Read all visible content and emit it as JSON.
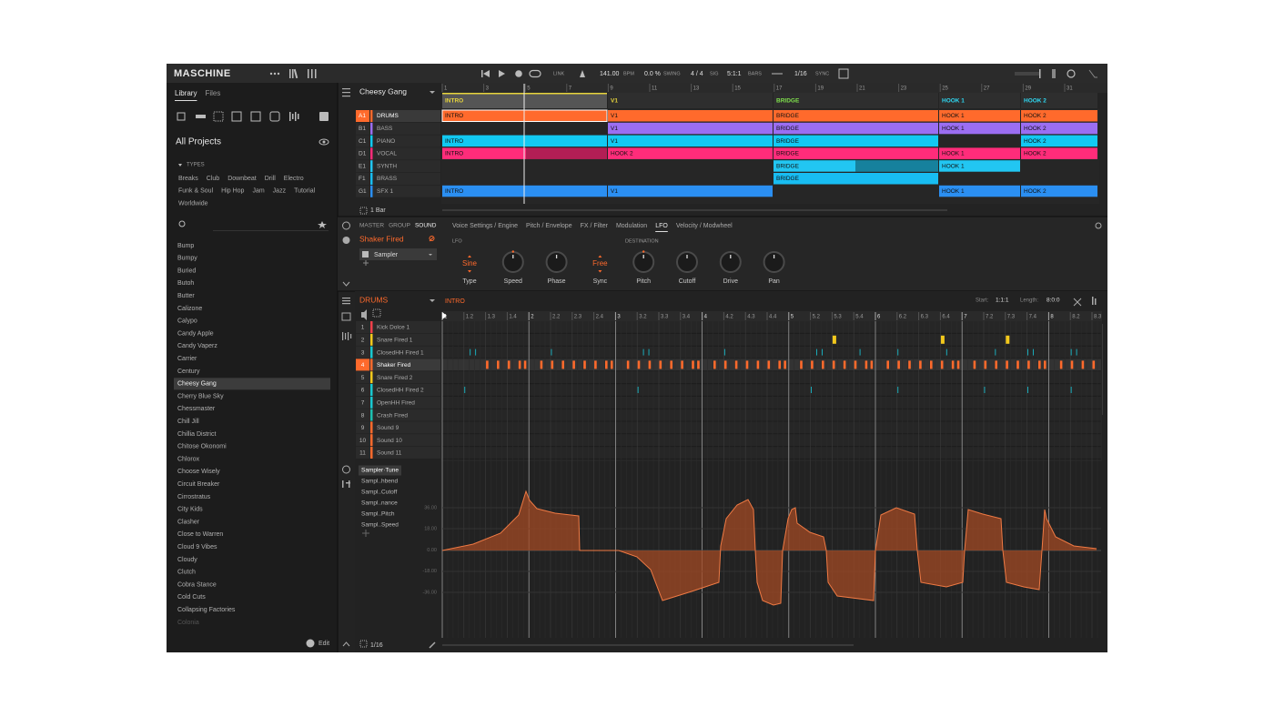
{
  "header": {
    "logo": "MASCHINE",
    "link": "LINK",
    "tempo": "141.00",
    "tempo_unit": "BPM",
    "swing": "0.0 %",
    "swing_label": "SWING",
    "signature": "4 / 4",
    "signature_label": "SIG",
    "position": "5:1:1",
    "position_label": "BARS",
    "quantize": "1/16",
    "sync_label": "SYNC"
  },
  "browser": {
    "tabs": [
      "Library",
      "Files"
    ],
    "title": "All Projects",
    "types_label": "TYPES",
    "types": [
      [
        "Breaks",
        "Club",
        "Downbeat",
        "Drill",
        "Electro"
      ],
      [
        "Funk & Soul",
        "Hip Hop",
        "Jam",
        "Jazz",
        "Tutorial"
      ],
      [
        "Worldwide"
      ]
    ],
    "projects": [
      "Bump",
      "Bumpy",
      "Buried",
      "Butoh",
      "Butter",
      "Calizone",
      "Calypo",
      "Candy Apple",
      "Candy Vaperz",
      "Carrier",
      "Century",
      "Cheesy Gang",
      "Cherry Blue Sky",
      "Chessmaster",
      "Chill Jill",
      "Chillia District",
      "Chitose Okonomi",
      "Chlorox",
      "Choose Wisely",
      "Circuit Breaker",
      "Cirrostratus",
      "City Kids",
      "Clasher",
      "Close to Warren",
      "Cloud 9 Vibes",
      "Cloudy",
      "Clutch",
      "Cobra Stance",
      "Cold Cuts",
      "Collapsing Factories",
      "Colonia"
    ],
    "edit": "Edit"
  },
  "arranger": {
    "project": "Cheesy Gang",
    "ruler": [
      "1",
      "3",
      "5",
      "7",
      "9",
      "11",
      "13",
      "15",
      "17",
      "19",
      "21",
      "23",
      "25",
      "27",
      "29",
      "31"
    ],
    "sections": [
      {
        "name": "INTRO",
        "color": "#e6d43c"
      },
      {
        "name": "V1",
        "color": "#e6d43c"
      },
      {
        "name": "BRIDGE",
        "color": "#7fe04c"
      },
      {
        "name": "HOOK 1",
        "color": "#2fd8f2"
      },
      {
        "name": "HOOK 2",
        "color": "#2fd8f2"
      }
    ],
    "groups": [
      {
        "id": "A1",
        "name": "DRUMS",
        "color": "#ff6a2c",
        "clips": [
          "INTRO",
          "V1",
          "BRIDGE",
          "HOOK 1",
          "HOOK 2"
        ]
      },
      {
        "id": "B1",
        "name": "BASS",
        "color": "#9b6ef2",
        "clips": [
          null,
          "V1",
          "BRIDGE",
          "HOOK 1",
          "HOOK 2"
        ]
      },
      {
        "id": "C1",
        "name": "PIANO",
        "color": "#12c9f2",
        "clips": [
          "INTRO",
          "V1",
          "BRIDGE",
          null,
          "HOOK 2"
        ]
      },
      {
        "id": "D1",
        "name": "VOCAL",
        "color": "#ff2c7a",
        "clips": [
          "INTRO",
          "HOOK 2",
          "BRIDGE",
          "HOOK 1",
          "HOOK 2"
        ]
      },
      {
        "id": "E1",
        "name": "SYNTH",
        "color": "#22c6f2",
        "clips": [
          null,
          null,
          "BRIDGE",
          "HOOK 1",
          null
        ]
      },
      {
        "id": "F1",
        "name": "BRASS",
        "color": "#18bdf2",
        "clips": [
          null,
          null,
          "BRIDGE",
          null,
          null
        ]
      },
      {
        "id": "G1",
        "name": "SFX 1",
        "color": "#2b8ff2",
        "clips": [
          "INTRO",
          "V1",
          null,
          "HOOK 1",
          "HOOK 2"
        ]
      }
    ],
    "zoom": "1 Bar"
  },
  "plugin": {
    "tabs": [
      "MASTER",
      "GROUP",
      "SOUND"
    ],
    "sound": "Shaker Fired",
    "module": "Sampler",
    "pages": [
      "Voice Settings / Engine",
      "Pitch / Envelope",
      "FX / Filter",
      "Modulation",
      "LFO",
      "Velocity / Modwheel"
    ],
    "section": "LFO",
    "destination": "DESTINATION",
    "knobs": [
      {
        "label": "Type",
        "value": "Sine"
      },
      {
        "label": "Speed"
      },
      {
        "label": "Phase"
      },
      {
        "label": "Sync",
        "value": "Free"
      },
      {
        "label": "Pitch"
      },
      {
        "label": "Cutoff"
      },
      {
        "label": "Drive"
      },
      {
        "label": "Pan"
      }
    ]
  },
  "pattern": {
    "group": "DRUMS",
    "pattern": "INTRO",
    "start_label": "Start:",
    "start": "1:1:1",
    "length_label": "Length:",
    "length": "8:0:0",
    "sounds": [
      {
        "name": "Kick Dolce 1",
        "color": "#f0404a"
      },
      {
        "name": "Snare Fired 1",
        "color": "#f2c81c"
      },
      {
        "name": "ClosedHH Fired 1",
        "color": "#18c8d0"
      },
      {
        "name": "Shaker Fired",
        "color": "#ff6a2c"
      },
      {
        "name": "Snare Fired 2",
        "color": "#f2c81c"
      },
      {
        "name": "ClosedHH Fired 2",
        "color": "#18c8d0"
      },
      {
        "name": "OpenHH Fired",
        "color": "#18c8d0"
      },
      {
        "name": "Crash Fired",
        "color": "#1cc0b0"
      },
      {
        "name": "Sound 9",
        "color": "#ff6a2c"
      },
      {
        "name": "Sound 10",
        "color": "#ff6a2c"
      },
      {
        "name": "Sound 11",
        "color": "#ff6a2c"
      }
    ],
    "ruler": [
      "1",
      "1.2",
      "1.3",
      "1.4",
      "2",
      "2.2",
      "2.3",
      "2.4",
      "3",
      "3.2",
      "3.3",
      "3.4",
      "4",
      "4.2",
      "4.3",
      "4.4",
      "5",
      "5.2",
      "5.3",
      "5.4",
      "6",
      "6.2",
      "6.3",
      "6.4",
      "7",
      "7.2",
      "7.3",
      "7.4",
      "8",
      "8.2",
      "8.3"
    ],
    "automation": [
      "Sampler·Tune",
      "Sampl..hbend",
      "Sampl..Cutoff",
      "Sampl..nance",
      "Sampl..Pitch",
      "Sampl..Speed"
    ],
    "levels": [
      "36.00",
      "18.00",
      "0.00",
      "-18.00",
      "-36.00"
    ],
    "quantize": "1/16"
  }
}
